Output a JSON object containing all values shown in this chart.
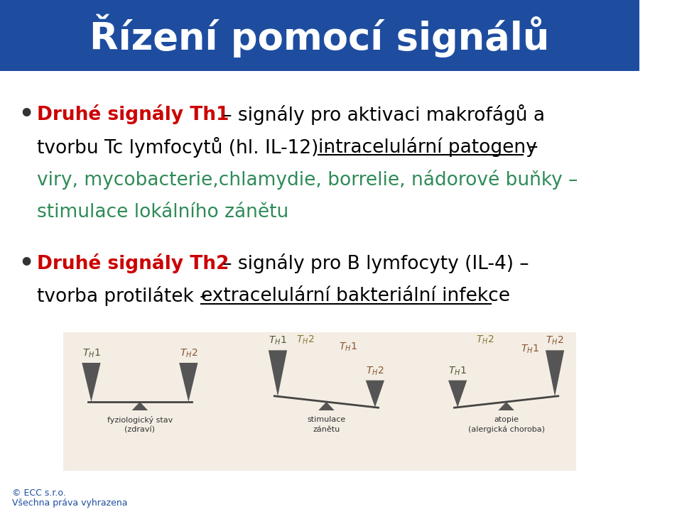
{
  "title": "Řízení pomocí signálů",
  "title_bg": "#1e4da0",
  "title_color": "#ffffff",
  "title_fontsize": 38,
  "content_bg": "#ffffff",
  "bullet1_bold": "Druhé signály Th1",
  "bullet1_bold_color": "#cc0000",
  "bullet1_line1_normal": " – signály pro aktivaci makrofágů a",
  "bullet1_line2_normal": "tvorbu Tc lymfocytů (hl. IL-12) - ",
  "bullet1_underline": "intracelulární patogeny",
  "bullet1_dash": " –",
  "bullet1_green_line1": "viry, mycobacterie,chlamydie, borrelie, nádorové buňky –",
  "bullet1_green_line2": "stimulace lokálního zánětu",
  "bullet1_green_color": "#2e8b57",
  "bullet2_bold": "Druhé signály Th2",
  "bullet2_bold_color": "#cc0000",
  "bullet2_line1_normal": " – signály pro B lymfocyty (IL-4) –",
  "bullet2_line2_normal": "tvorba protilátek - ",
  "bullet2_underline": "extracelulární bakteriální infekce",
  "footer_left1": "© ECC s.r.o.",
  "footer_left2": "Všechna práva vyhrazena",
  "footer_color": "#1e4da0",
  "diagram_bg": "#e8dcc8"
}
